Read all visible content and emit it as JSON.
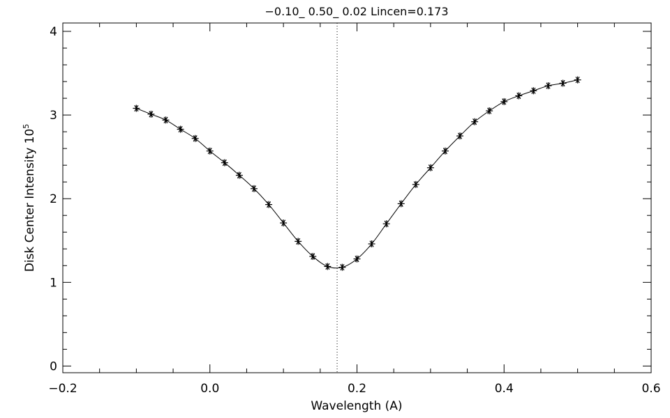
{
  "chart_data": {
    "type": "line",
    "title": "−0.10_ 0.50_ 0.02   Lincen=0.173",
    "xlabel": "Wavelength (A)",
    "ylabel": "Disk Center Intensity 10",
    "ylabel_exponent": "5",
    "xlim": [
      -0.2,
      0.6
    ],
    "ylim": [
      -0.08,
      4.1
    ],
    "x_ticks": [
      -0.2,
      0.0,
      0.2,
      0.4,
      0.6
    ],
    "x_tick_labels": [
      "−0.2",
      "0.0",
      "0.2",
      "0.4",
      "0.6"
    ],
    "y_ticks": [
      0,
      1,
      2,
      3,
      4
    ],
    "y_tick_labels": [
      "0",
      "1",
      "2",
      "3",
      "4"
    ],
    "line_center": 0.173,
    "marker": "asterisk",
    "grid": false,
    "colors": {
      "line": "#000000",
      "background": "#ffffff"
    },
    "series": [
      {
        "x": [
          -0.1,
          -0.08,
          -0.06,
          -0.04,
          -0.02,
          0.0,
          0.02,
          0.04,
          0.06,
          0.08,
          0.1,
          0.12,
          0.14,
          0.16,
          0.18,
          0.2,
          0.22,
          0.24,
          0.26,
          0.28,
          0.3,
          0.32,
          0.34,
          0.36,
          0.38,
          0.4,
          0.42,
          0.44,
          0.46,
          0.48,
          0.5
        ],
        "y": [
          3.08,
          3.01,
          2.94,
          2.83,
          2.72,
          2.57,
          2.43,
          2.28,
          2.12,
          1.93,
          1.71,
          1.49,
          1.31,
          1.19,
          1.18,
          1.28,
          1.46,
          1.7,
          1.94,
          2.17,
          2.37,
          2.57,
          2.75,
          2.92,
          3.05,
          3.16,
          3.23,
          3.29,
          3.35,
          3.38,
          3.42
        ]
      }
    ]
  }
}
